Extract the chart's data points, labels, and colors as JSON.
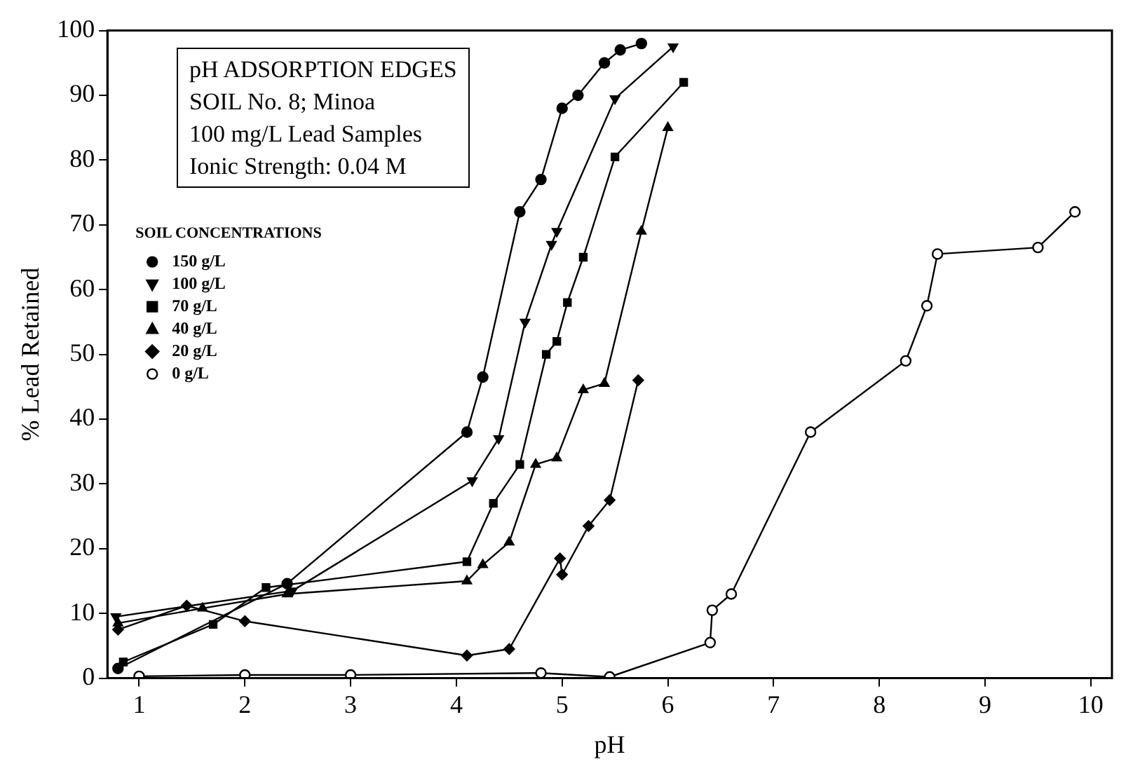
{
  "chart_data": {
    "type": "line",
    "xlabel": "pH",
    "ylabel": "% Lead Retained",
    "annotations": [
      "pH ADSORPTION EDGES",
      "SOIL No. 8; Minoa",
      "100 mg/L Lead Samples",
      "Ionic Strength: 0.04 M"
    ],
    "legend_title": "SOIL CONCENTRATIONS",
    "legend": "top left",
    "xlim": [
      0.7,
      10.2
    ],
    "xticks": [
      1,
      2,
      3,
      4,
      5,
      6,
      7,
      8,
      9,
      10
    ],
    "ylim": [
      0,
      100
    ],
    "yticks": [
      0,
      10,
      20,
      30,
      40,
      50,
      60,
      70,
      80,
      90,
      100
    ],
    "grid": false,
    "line_style": "solid",
    "series": [
      {
        "name": "150 g/L",
        "color": "#000000",
        "marker": "circle",
        "x": [
          0.8,
          2.4,
          4.1,
          4.25,
          4.6,
          4.8,
          5.0,
          5.15,
          5.4,
          5.55,
          5.75
        ],
        "values": [
          1.5,
          14.6,
          38,
          46.5,
          72,
          77,
          88,
          90,
          95,
          97,
          98
        ]
      },
      {
        "name": "100 g/L",
        "color": "#000000",
        "marker": "triangle-down",
        "x": [
          0.78,
          2.45,
          4.15,
          4.4,
          4.65,
          4.9,
          4.95,
          5.5,
          6.05
        ],
        "values": [
          9.5,
          13.5,
          30.5,
          37,
          55,
          67,
          69,
          89.5,
          97.5
        ]
      },
      {
        "name": "70 g/L",
        "color": "#000000",
        "marker": "square",
        "x": [
          0.85,
          1.7,
          2.2,
          4.1,
          4.35,
          4.6,
          4.85,
          4.95,
          5.05,
          5.2,
          5.5,
          6.15
        ],
        "values": [
          2.5,
          8.3,
          14,
          18,
          27,
          33,
          50,
          52,
          58,
          65,
          80.5,
          92
        ]
      },
      {
        "name": "40 g/L",
        "color": "#000000",
        "marker": "triangle",
        "x": [
          0.8,
          1.6,
          2.4,
          4.1,
          4.25,
          4.5,
          4.75,
          4.95,
          5.2,
          5.4,
          5.75,
          6.0
        ],
        "values": [
          8.5,
          10.8,
          13,
          15,
          17.5,
          21,
          33,
          34,
          44.5,
          45.5,
          69,
          85
        ]
      },
      {
        "name": "20 g/L",
        "color": "#000000",
        "marker": "diamond",
        "x": [
          0.8,
          1.45,
          2.0,
          4.1,
          4.5,
          4.98,
          5.0,
          5.25,
          5.45,
          5.72
        ],
        "values": [
          7.5,
          11.2,
          8.8,
          3.5,
          4.5,
          18.5,
          16,
          23.5,
          27.5,
          46
        ]
      },
      {
        "name": "0 g/L",
        "color": "#000000",
        "marker": "circle-open",
        "x": [
          1,
          2,
          3,
          4.8,
          5.45,
          6.4,
          6.42,
          6.6,
          7.35,
          8.25,
          8.45,
          8.55,
          9.5,
          9.85
        ],
        "values": [
          0.3,
          0.5,
          0.5,
          0.8,
          0.2,
          5.5,
          10.5,
          13,
          38,
          49,
          57.5,
          65.5,
          66.5,
          72
        ]
      }
    ]
  }
}
